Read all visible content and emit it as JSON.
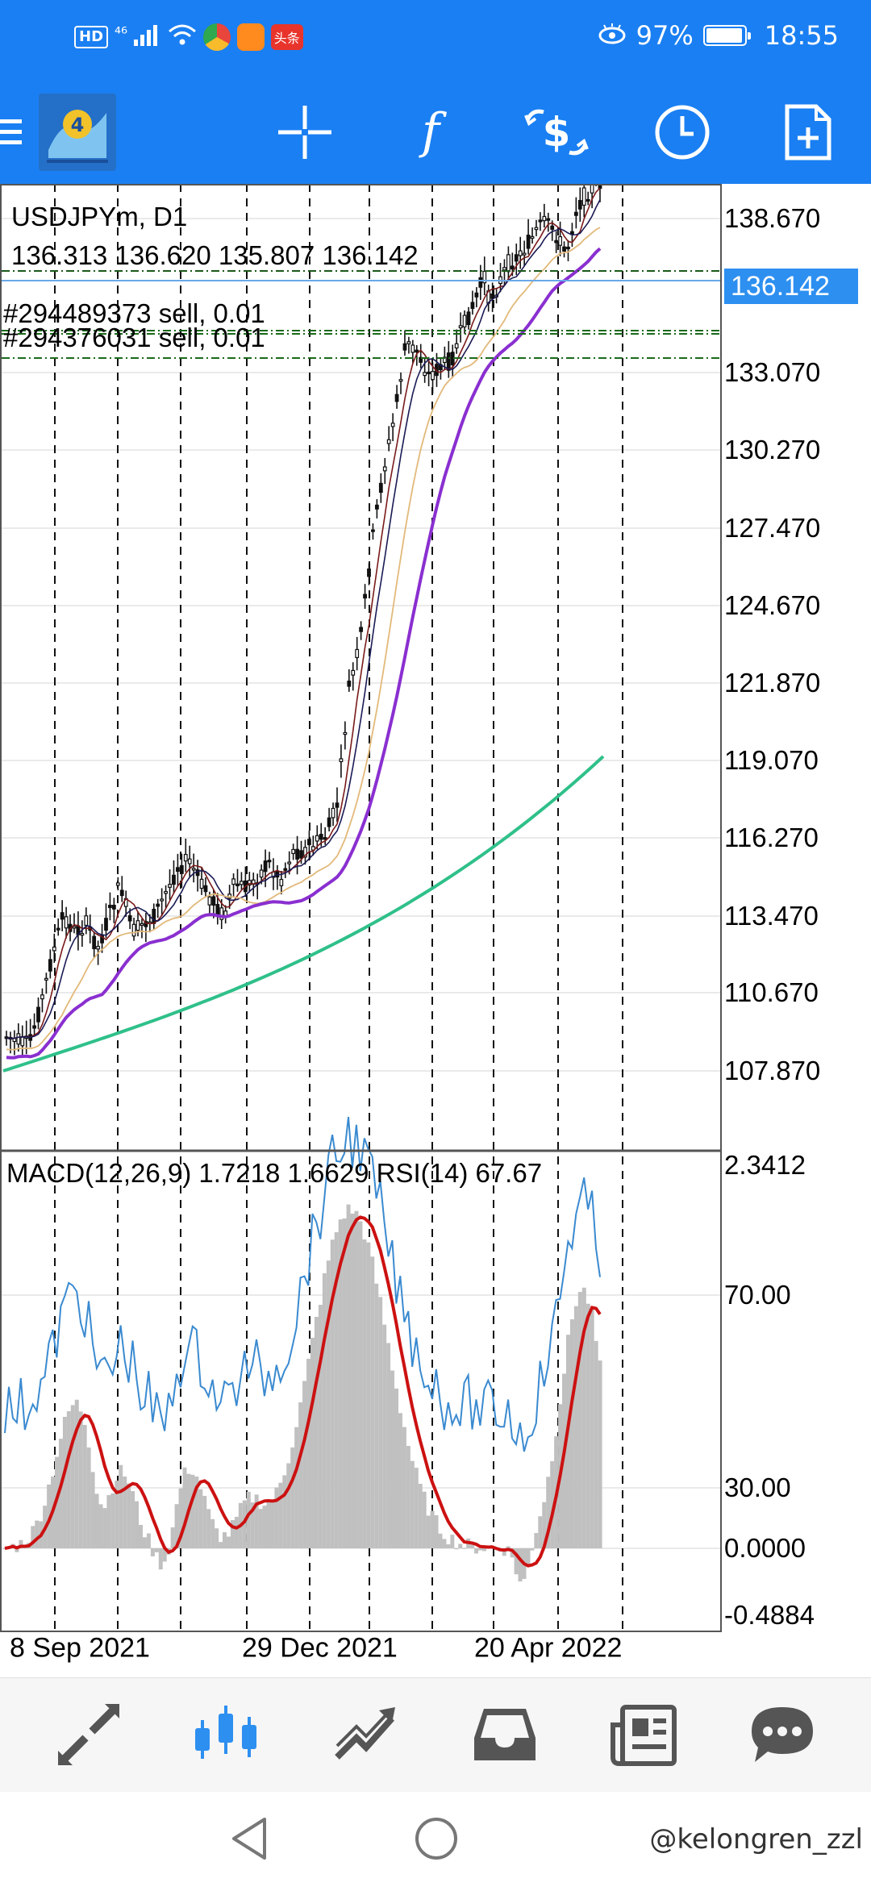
{
  "status_bar": {
    "hd": "HD",
    "signal": "⁴⁶",
    "app_badge": "头条",
    "battery": "97%",
    "time": "18:55",
    "battery_level": 0.97
  },
  "toolbar": {
    "items": [
      "menu-icon",
      "mt4-logo",
      "crosshair-icon",
      "indicators-icon",
      "trade-icon",
      "timeframe-icon",
      "new-order-icon"
    ]
  },
  "chart": {
    "symbol": "USDJPYm, D1",
    "ohlc": "136.313 136.620 135.807 136.142",
    "orders": [
      "#294489373 sell, 0.01",
      "#294376031 sell, 0.01"
    ],
    "current_price": "136.142",
    "price_ticks": [
      "138.670",
      "133.070",
      "130.270",
      "127.470",
      "124.670",
      "121.870",
      "119.070",
      "116.270",
      "113.470",
      "110.670",
      "107.870"
    ],
    "indicator_label": "MACD(12,26,9) 1.7218 1.6629 RSI(14) 67.67",
    "indicator_ticks": [
      "2.3412",
      "70.00",
      "30.00",
      "0.0000",
      "-0.4884"
    ],
    "dates": [
      "8 Sep 2021",
      "29 Dec 2021",
      "20 Apr 2022"
    ],
    "colors": {
      "ma_purple": "#8a2fd0",
      "ma_green": "#2fc08a",
      "signal_red": "#cc1111",
      "rsi_blue": "#3a8ad0",
      "histogram": "#c0c0c0",
      "accent": "#1a7ff2"
    }
  },
  "bottom_nav": {
    "items": [
      "quotes-icon",
      "chart-icon",
      "trade-icon",
      "history-icon",
      "news-icon",
      "messages-icon"
    ],
    "active": "chart-icon"
  },
  "system_nav": {
    "watermark": "@kelongren_zzl"
  }
}
